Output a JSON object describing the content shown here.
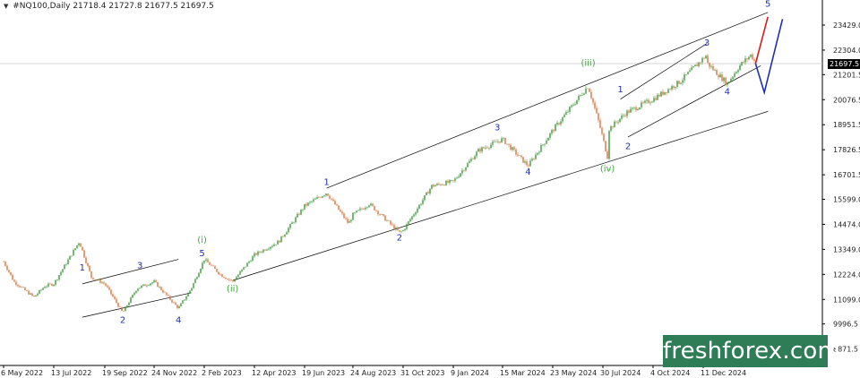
{
  "header": {
    "symbol": "#NQ100,Daily",
    "ohlc": "21718.4 21727.8 21677.5 21697.5",
    "icon": "dropdown-triangle-icon"
  },
  "watermark": {
    "text": "freshforex.com",
    "color": "#2f7d57"
  },
  "current_price_label": "21697.5",
  "chart_data": {
    "type": "candlestick",
    "title": "",
    "xlabel": "",
    "ylabel": "",
    "grid": false,
    "ylim": [
      8300,
      24500
    ],
    "y_ticks": [
      "23429.0",
      "22304.0",
      "21697.5",
      "21201.5",
      "20076.5",
      "18951.5",
      "17826.5",
      "16701.5",
      "15599.0",
      "14474.0",
      "13349.0",
      "12224.0",
      "11099.0",
      "9996.5",
      "8871.5"
    ],
    "y_tick_values": [
      23429.0,
      22304.0,
      21697.5,
      21201.5,
      20076.5,
      18951.5,
      17826.5,
      16701.5,
      15599.0,
      14474.0,
      13349.0,
      12224.0,
      11099.0,
      9996.5,
      8871.5
    ],
    "x_ticks": [
      "6 May 2022",
      "13 Jul 2022",
      "19 Sep 2022",
      "24 Nov 2022",
      "2 Feb 2023",
      "12 Apr 2023",
      "19 Jun 2023",
      "24 Aug 2023",
      "31 Oct 2023",
      "9 Jan 2024",
      "15 Mar 2024",
      "23 May 2024",
      "30 Jul 2024",
      "4 Oct 2024",
      "11 Dec 2024"
    ],
    "colors": {
      "up": "#3a9a3a",
      "down": "#e0703a",
      "lines": "#000000",
      "wave_blue": "#1f2fb5",
      "wave_green": "#3aa83a",
      "forecast_red": "#e01818",
      "forecast_blue": "#1f2fb5",
      "price_line": "#c8c8c8"
    },
    "price_path": [
      [
        "6 May 2022",
        12800
      ],
      [
        "2022-05-20",
        11900
      ],
      [
        "2022-06-16",
        11200
      ],
      [
        "2022-07-01",
        11700
      ],
      [
        "13 Jul 2022",
        11800
      ],
      [
        "2022-08-16",
        13700
      ],
      [
        "2022-09-01",
        12100
      ],
      [
        "19 Sep 2022",
        11800
      ],
      [
        "2022-10-13",
        10500
      ],
      [
        "2022-11-01",
        11600
      ],
      [
        "24 Nov 2022",
        11900
      ],
      [
        "2022-12-28",
        10700
      ],
      [
        "2023-01-15",
        11600
      ],
      [
        "2 Feb 2023",
        12900
      ],
      [
        "2023-02-25",
        12200
      ],
      [
        "2023-03-13",
        11900
      ],
      [
        "12 Apr 2023",
        13100
      ],
      [
        "2023-05-15",
        13700
      ],
      [
        "19 Jun 2023",
        15300
      ],
      [
        "2023-07-19",
        15900
      ],
      [
        "2023-08-18",
        14500
      ],
      [
        "24 Aug 2023",
        14900
      ],
      [
        "2023-09-15",
        15400
      ],
      [
        "2023-10-26",
        14100
      ],
      [
        "31 Oct 2023",
        14200
      ],
      [
        "2023-12-10",
        16200
      ],
      [
        "9 Jan 2024",
        16400
      ],
      [
        "2024-02-12",
        17800
      ],
      [
        "15 Mar 2024",
        18300
      ],
      [
        "2024-04-19",
        17100
      ],
      [
        "23 May 2024",
        18700
      ],
      [
        "2024-07-10",
        20700
      ],
      [
        "2024-07-25",
        19000
      ],
      [
        "2024-08-05",
        17500
      ],
      [
        "30 Jul 2024",
        18500
      ],
      [
        "2024-08-30",
        19500
      ],
      [
        "4 Oct 2024",
        20100
      ],
      [
        "2024-11-10",
        20900
      ],
      [
        "2024-12-16",
        22100
      ],
      [
        "11 Dec 2024",
        21900
      ],
      [
        "2025-01-13",
        20800
      ],
      [
        "2025-01-30",
        21600
      ],
      [
        "2025-02-15",
        22100
      ],
      [
        "2025-02-21",
        21697.5
      ]
    ],
    "wave_labels": [
      {
        "text": "1",
        "date": "2022-08-20",
        "price": 12400,
        "color": "blue"
      },
      {
        "text": "2",
        "date": "2022-10-13",
        "price": 10050,
        "color": "blue"
      },
      {
        "text": "3",
        "date": "2022-11-05",
        "price": 12500,
        "color": "blue"
      },
      {
        "text": "4",
        "date": "2022-12-28",
        "price": 10050,
        "color": "blue"
      },
      {
        "text": "5",
        "date": "2023-01-30",
        "price": 13050,
        "color": "blue"
      },
      {
        "text": "(i)",
        "date": "2023-01-30",
        "price": 13650,
        "color": "green"
      },
      {
        "text": "(ii)",
        "date": "2023-03-13",
        "price": 11450,
        "color": "green"
      },
      {
        "text": "1",
        "date": "2023-07-19",
        "price": 16250,
        "color": "blue"
      },
      {
        "text": "2",
        "date": "2023-10-26",
        "price": 13750,
        "color": "blue"
      },
      {
        "text": "3",
        "date": "2024-03-08",
        "price": 18700,
        "color": "blue"
      },
      {
        "text": "4",
        "date": "2024-04-19",
        "price": 16700,
        "color": "blue"
      },
      {
        "text": "(iii)",
        "date": "2024-07-10",
        "price": 21600,
        "color": "green"
      },
      {
        "text": "(iv)",
        "date": "2024-08-05",
        "price": 16850,
        "color": "green"
      },
      {
        "text": "1",
        "date": "2024-08-22",
        "price": 20400,
        "color": "blue"
      },
      {
        "text": "2",
        "date": "2024-09-01",
        "price": 17850,
        "color": "blue"
      },
      {
        "text": "3",
        "date": "2024-12-16",
        "price": 22500,
        "color": "blue"
      },
      {
        "text": "4",
        "date": "2025-01-13",
        "price": 20300,
        "color": "blue"
      },
      {
        "text": "5",
        "date": "2025-03-10",
        "price": 24250,
        "color": "blue"
      }
    ],
    "trendlines": [
      {
        "from": [
          "2023-03-13",
          11950
        ],
        "to": [
          "2025-03-10",
          19550
        ]
      },
      {
        "from": [
          "2023-07-19",
          16100
        ],
        "to": [
          "2025-03-10",
          24000
        ]
      },
      {
        "from": [
          "2022-08-20",
          11800
        ],
        "to": [
          "2022-12-28",
          12900
        ]
      },
      {
        "from": [
          "2022-08-20",
          10300
        ],
        "to": [
          "2023-01-15",
          11400
        ]
      },
      {
        "from": [
          "2024-08-22",
          20100
        ],
        "to": [
          "2024-12-16",
          22600
        ]
      },
      {
        "from": [
          "2024-09-01",
          18400
        ],
        "to": [
          "2025-02-28",
          21600
        ]
      }
    ],
    "forecast": [
      {
        "color": "red",
        "points": [
          [
            "2025-02-21",
            21697.5
          ],
          [
            "2025-03-10",
            23800
          ]
        ]
      },
      {
        "color": "blue",
        "points": [
          [
            "2025-02-21",
            21697.5
          ],
          [
            "2025-03-05",
            20400
          ],
          [
            "2025-03-30",
            23700
          ]
        ]
      }
    ]
  }
}
